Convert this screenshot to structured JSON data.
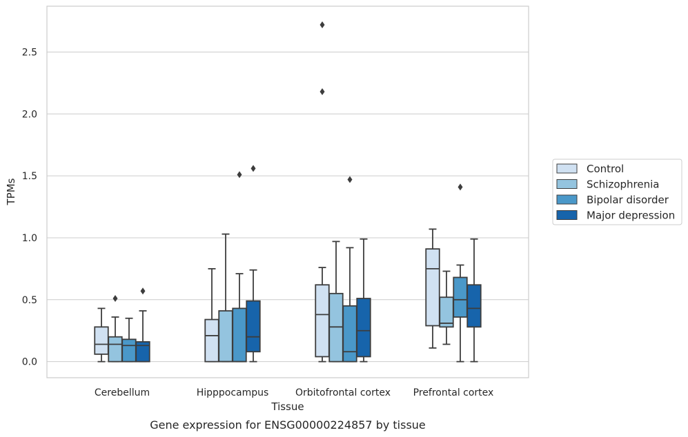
{
  "caption": "Gene expression for ENSG00000224857 by tissue",
  "chart_data": {
    "type": "boxplot",
    "xlabel": "Tissue",
    "ylabel": "TPMs",
    "ylim": [
      -0.13,
      2.87
    ],
    "yticks": [
      "0.0",
      "0.5",
      "1.0",
      "1.5",
      "2.0",
      "2.5"
    ],
    "grid": true,
    "legend_position": "right, outside plot",
    "categories": [
      "Cerebellum",
      "Hipppocampus",
      "Orbitofrontal cortex",
      "Prefrontal cortex"
    ],
    "series": [
      {
        "name": "Control",
        "color": "#d0e1f2",
        "boxes": [
          {
            "whisker_low": 0.0,
            "q1": 0.06,
            "median": 0.14,
            "q3": 0.28,
            "whisker_high": 0.43,
            "outliers": []
          },
          {
            "whisker_low": 0.0,
            "q1": 0.0,
            "median": 0.21,
            "q3": 0.34,
            "whisker_high": 0.75,
            "outliers": []
          },
          {
            "whisker_low": 0.0,
            "q1": 0.04,
            "median": 0.38,
            "q3": 0.62,
            "whisker_high": 0.76,
            "outliers": [
              2.18,
              2.72
            ]
          },
          {
            "whisker_low": 0.11,
            "q1": 0.29,
            "median": 0.75,
            "q3": 0.91,
            "whisker_high": 1.07,
            "outliers": []
          }
        ]
      },
      {
        "name": "Schizophrenia",
        "color": "#94c4df",
        "boxes": [
          {
            "whisker_low": 0.0,
            "q1": 0.0,
            "median": 0.14,
            "q3": 0.2,
            "whisker_high": 0.36,
            "outliers": [
              0.51
            ]
          },
          {
            "whisker_low": 0.0,
            "q1": 0.0,
            "median": 0.0,
            "q3": 0.41,
            "whisker_high": 1.03,
            "outliers": []
          },
          {
            "whisker_low": 0.0,
            "q1": 0.0,
            "median": 0.28,
            "q3": 0.55,
            "whisker_high": 0.97,
            "outliers": []
          },
          {
            "whisker_low": 0.14,
            "q1": 0.28,
            "median": 0.31,
            "q3": 0.52,
            "whisker_high": 0.73,
            "outliers": []
          }
        ]
      },
      {
        "name": "Bipolar disorder",
        "color": "#4a98c9",
        "boxes": [
          {
            "whisker_low": 0.0,
            "q1": 0.0,
            "median": 0.13,
            "q3": 0.18,
            "whisker_high": 0.35,
            "outliers": []
          },
          {
            "whisker_low": 0.0,
            "q1": 0.0,
            "median": 0.0,
            "q3": 0.43,
            "whisker_high": 0.71,
            "outliers": [
              1.51
            ]
          },
          {
            "whisker_low": 0.0,
            "q1": 0.0,
            "median": 0.08,
            "q3": 0.45,
            "whisker_high": 0.92,
            "outliers": [
              1.47
            ]
          },
          {
            "whisker_low": 0.0,
            "q1": 0.36,
            "median": 0.5,
            "q3": 0.68,
            "whisker_high": 0.78,
            "outliers": [
              1.41
            ]
          }
        ]
      },
      {
        "name": "Major depression",
        "color": "#1764ab",
        "boxes": [
          {
            "whisker_low": 0.0,
            "q1": 0.0,
            "median": 0.13,
            "q3": 0.16,
            "whisker_high": 0.41,
            "outliers": [
              0.57
            ]
          },
          {
            "whisker_low": 0.0,
            "q1": 0.08,
            "median": 0.2,
            "q3": 0.49,
            "whisker_high": 0.74,
            "outliers": [
              1.56
            ]
          },
          {
            "whisker_low": 0.0,
            "q1": 0.04,
            "median": 0.25,
            "q3": 0.51,
            "whisker_high": 0.99,
            "outliers": []
          },
          {
            "whisker_low": 0.0,
            "q1": 0.28,
            "median": 0.43,
            "q3": 0.62,
            "whisker_high": 0.99,
            "outliers": []
          }
        ]
      }
    ]
  }
}
